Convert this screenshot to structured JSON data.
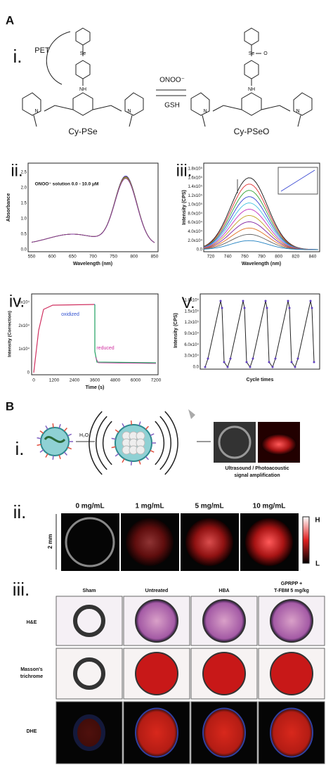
{
  "panel_A": {
    "label": "A",
    "i": {
      "label": "i.",
      "pet": "PET",
      "atoms": [
        "Se",
        "NH",
        "N",
        "N",
        "Se",
        "O",
        "NH",
        "N",
        "N"
      ],
      "reagent_forward": "ONOO⁻",
      "reagent_back": "GSH",
      "left_compound": "Cy-PSe",
      "right_compound": "Cy-PSeO"
    },
    "ii": {
      "label": "ii.",
      "annotation": "ONOO⁻ solution 0.0 - 10.0 μM",
      "x_label": "Wavelength (nm)",
      "y_label": "Absorbance",
      "xticks": [
        "550",
        "600",
        "650",
        "700",
        "750",
        "800",
        "850"
      ],
      "yticks": [
        "0.0",
        "0.5",
        "1.0",
        "1.5",
        "2.0",
        "2.5"
      ]
    },
    "iii": {
      "label": "iii.",
      "x_label": "Wavelength (nm)",
      "y_label": "Intensity (CPS)",
      "xticks": [
        "720",
        "740",
        "760",
        "780",
        "800",
        "820",
        "840"
      ],
      "yticks": [
        "0.0",
        "2.0x10⁴",
        "4.0x10⁴",
        "6.0x10⁴",
        "8.0x10⁴",
        "1.0x10⁵",
        "1.2x10⁵",
        "1.4x10⁵",
        "1.6x10⁵",
        "1.8x10⁵"
      ]
    },
    "iv": {
      "label": "iv.",
      "x_label": "Time (s)",
      "y_label": "Intensity (Correction)",
      "oxidized": "oxidized",
      "reduced": "reduced",
      "xticks": [
        "0",
        "1200",
        "2400",
        "3600",
        "4800",
        "6000",
        "7200"
      ],
      "yticks": [
        "0",
        "1x10⁴",
        "2x10⁴",
        "3x10⁴"
      ]
    },
    "v": {
      "label": "V.",
      "x_label": "Cycle times",
      "y_label": "Intensity (CPS)",
      "yticks": [
        "0.0",
        "3.0x10⁴",
        "6.0x10⁴",
        "9.0x10⁴",
        "1.2x10⁵",
        "1.5x10⁵",
        "1.8x10⁵"
      ]
    }
  },
  "panel_B": {
    "label": "B",
    "i": {
      "label": "i.",
      "reagent": "H₂O₂",
      "caption": [
        "Ultrasound / Photoacoustic",
        "signal amplification"
      ]
    },
    "ii": {
      "label": "ii.",
      "columns": [
        "0 mg/mL",
        "1 mg/mL",
        "5 mg/mL",
        "10 mg/mL"
      ],
      "scale": "2 mm",
      "scale_high": "H",
      "scale_low": "L"
    },
    "iii": {
      "label": "iii.",
      "columns": [
        "Sham",
        "Untreated",
        "HBA",
        "GPRPP +",
        "T-FBM 5 mg/kg"
      ],
      "rows": [
        "H&E",
        "Masson's",
        "trichrome",
        "DHE"
      ]
    }
  }
}
